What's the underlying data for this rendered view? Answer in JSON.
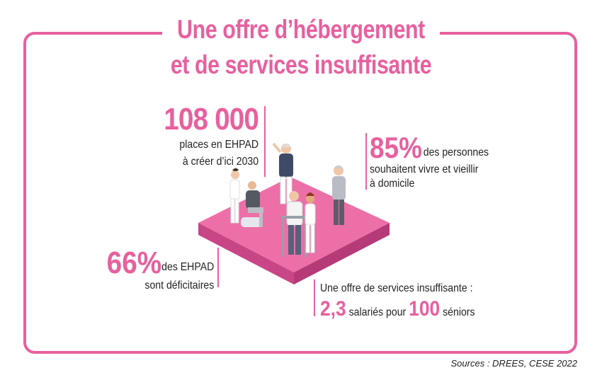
{
  "title": {
    "line1": "Une offre d’hébergement",
    "line2": "et de services insuffisante"
  },
  "stat_places": {
    "number": "108 000",
    "line1": "places en EHPAD",
    "line2": "à créer d’ici 2030"
  },
  "stat_home": {
    "number": "85%",
    "line1": "des personnes",
    "line2": "souhaitent vivre et vieillir",
    "line3": "à domicile"
  },
  "stat_deficit": {
    "number": "66%",
    "line1": "des EHPAD",
    "line2": "sont déficitaires"
  },
  "stat_services": {
    "line1": "Une offre de services insuffisante :",
    "value_a": "2,3",
    "text_a": "salariés pour",
    "value_b": "100",
    "text_b": "séniors"
  },
  "source": "Sources : DREES, CESE 2022",
  "colors": {
    "accent": "#e8609e",
    "platform": "#e8609e",
    "platform_side": "#c94686"
  }
}
